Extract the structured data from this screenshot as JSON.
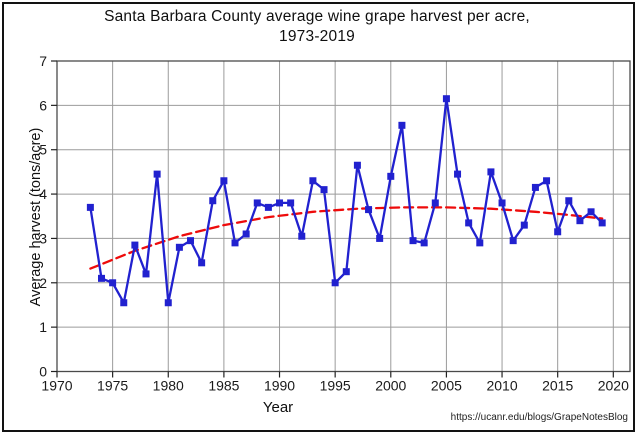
{
  "chart_data": {
    "type": "line",
    "title_line1": "Santa Barbara County average wine grape harvest per acre,",
    "title_line2": "1973-2019",
    "xlabel": "Year",
    "ylabel": "Average harvest (tons/acre)",
    "source_url": "https://ucanr.edu/blogs/GrapeNotesBlog",
    "xlim": [
      1970,
      2021.5
    ],
    "ylim": [
      0,
      7
    ],
    "x_ticks": [
      1970,
      1975,
      1980,
      1985,
      1990,
      1995,
      2000,
      2005,
      2010,
      2015,
      2020
    ],
    "y_ticks": [
      0,
      1,
      2,
      3,
      4,
      5,
      6,
      7
    ],
    "grid": true,
    "legend": "none",
    "colors": {
      "series": "#2121cf",
      "trend": "#ee0b0b",
      "grid": "#9b9b9b",
      "axis": "#4a4a4a",
      "text": "#1a1a1a"
    },
    "series": [
      {
        "name": "Average harvest (tons/acre)",
        "marker": "square",
        "x": [
          1973,
          1974,
          1975,
          1976,
          1977,
          1978,
          1979,
          1980,
          1981,
          1982,
          1983,
          1984,
          1985,
          1986,
          1987,
          1988,
          1989,
          1990,
          1991,
          1992,
          1993,
          1994,
          1995,
          1996,
          1997,
          1998,
          1999,
          2000,
          2001,
          2002,
          2003,
          2004,
          2005,
          2006,
          2007,
          2008,
          2009,
          2010,
          2011,
          2012,
          2013,
          2014,
          2015,
          2016,
          2017,
          2018,
          2019
        ],
        "values": [
          3.7,
          2.1,
          2.0,
          1.55,
          2.85,
          2.2,
          4.45,
          1.55,
          2.8,
          2.95,
          2.45,
          3.85,
          4.3,
          2.9,
          3.1,
          3.8,
          3.7,
          3.8,
          3.8,
          3.05,
          4.3,
          4.1,
          2.0,
          2.25,
          4.65,
          3.65,
          3.0,
          4.4,
          5.55,
          2.95,
          2.9,
          3.8,
          6.15,
          4.45,
          3.35,
          2.9,
          4.5,
          3.8,
          2.95,
          3.3,
          4.15,
          4.3,
          3.15,
          3.85,
          3.4,
          3.6,
          3.35
        ]
      }
    ],
    "trend": {
      "name": "polynomial trend",
      "style": "dashed",
      "points": [
        [
          1973,
          2.32
        ],
        [
          1977,
          2.72
        ],
        [
          1981,
          3.05
        ],
        [
          1985,
          3.3
        ],
        [
          1989,
          3.48
        ],
        [
          1993,
          3.6
        ],
        [
          1997,
          3.67
        ],
        [
          2001,
          3.7
        ],
        [
          2005,
          3.7
        ],
        [
          2009,
          3.67
        ],
        [
          2013,
          3.6
        ],
        [
          2016,
          3.53
        ],
        [
          2019,
          3.45
        ]
      ]
    }
  }
}
